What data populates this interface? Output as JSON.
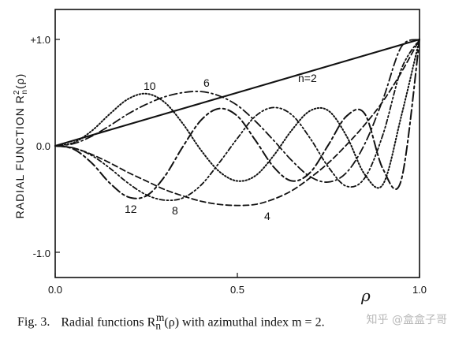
{
  "chart_data": {
    "type": "line",
    "title": "",
    "xlabel": "ρ",
    "ylabel": "RADIAL FUNCTION R",
    "ylabel_superscript": "2",
    "ylabel_subscript": "n",
    "ylabel_arg": "(ρ)",
    "xlim": [
      0,
      1
    ],
    "ylim": [
      -1.25,
      1.25
    ],
    "x_ticks": [
      0.0,
      0.5,
      1.0
    ],
    "x_tick_labels": [
      "0.0",
      "0.5",
      "1.0"
    ],
    "y_ticks": [
      1.0,
      0.0,
      -1.0
    ],
    "y_tick_labels": [
      "+1.0",
      "0.0",
      "-1.0"
    ],
    "grid": false,
    "legend": "none",
    "series": [
      {
        "name": "n=2",
        "values": [
          0.0,
          0.05,
          0.1,
          0.15,
          0.2,
          0.25,
          0.3,
          0.35,
          0.4,
          0.45,
          0.5,
          0.55,
          0.6,
          0.65,
          0.7,
          0.75,
          0.8,
          0.85,
          0.9,
          0.95,
          1.0
        ]
      },
      {
        "name": "4",
        "values": [
          0.0,
          -0.02,
          -0.08,
          -0.16,
          -0.25,
          -0.33,
          -0.41,
          -0.47,
          -0.52,
          -0.55,
          -0.56,
          -0.55,
          -0.5,
          -0.42,
          -0.3,
          -0.16,
          0.01,
          0.2,
          0.42,
          0.69,
          1.0
        ]
      },
      {
        "name": "6",
        "values": [
          0.0,
          0.02,
          0.09,
          0.19,
          0.3,
          0.39,
          0.46,
          0.5,
          0.51,
          0.47,
          0.38,
          0.23,
          0.05,
          -0.14,
          -0.29,
          -0.34,
          -0.25,
          0.02,
          0.44,
          0.93,
          1.0
        ]
      },
      {
        "name": "8",
        "values": [
          0.0,
          -0.02,
          -0.09,
          -0.21,
          -0.35,
          -0.46,
          -0.51,
          -0.49,
          -0.37,
          -0.16,
          0.07,
          0.28,
          0.36,
          0.29,
          0.07,
          -0.2,
          -0.38,
          -0.3,
          0.11,
          0.72,
          1.0
        ]
      },
      {
        "name": "10",
        "values": [
          0.0,
          0.03,
          0.14,
          0.3,
          0.44,
          0.49,
          0.41,
          0.21,
          -0.04,
          -0.24,
          -0.33,
          -0.28,
          -0.09,
          0.15,
          0.33,
          0.33,
          0.09,
          -0.27,
          -0.36,
          0.28,
          1.0
        ]
      },
      {
        "name": "12",
        "values": [
          0.0,
          -0.03,
          -0.16,
          -0.35,
          -0.48,
          -0.47,
          -0.29,
          -0.01,
          0.24,
          0.35,
          0.28,
          0.05,
          -0.2,
          -0.33,
          -0.25,
          0.01,
          0.28,
          0.3,
          -0.22,
          -0.32,
          1.0
        ]
      }
    ],
    "x": [
      0.0,
      0.05,
      0.1,
      0.15,
      0.2,
      0.25,
      0.3,
      0.35,
      0.4,
      0.45,
      0.5,
      0.55,
      0.6,
      0.65,
      0.7,
      0.75,
      0.8,
      0.85,
      0.9,
      0.95,
      1.0
    ],
    "curve_labels": [
      "10",
      "6",
      "n=2",
      "12",
      "8",
      "4"
    ]
  },
  "caption": {
    "fig_label": "Fig. 3.",
    "text": "Radial functions R",
    "sub": "n",
    "sup": "m",
    "text2": "(ρ) with azimuthal index m = 2.",
    "watermark": "知乎 @盒盒子哥"
  }
}
